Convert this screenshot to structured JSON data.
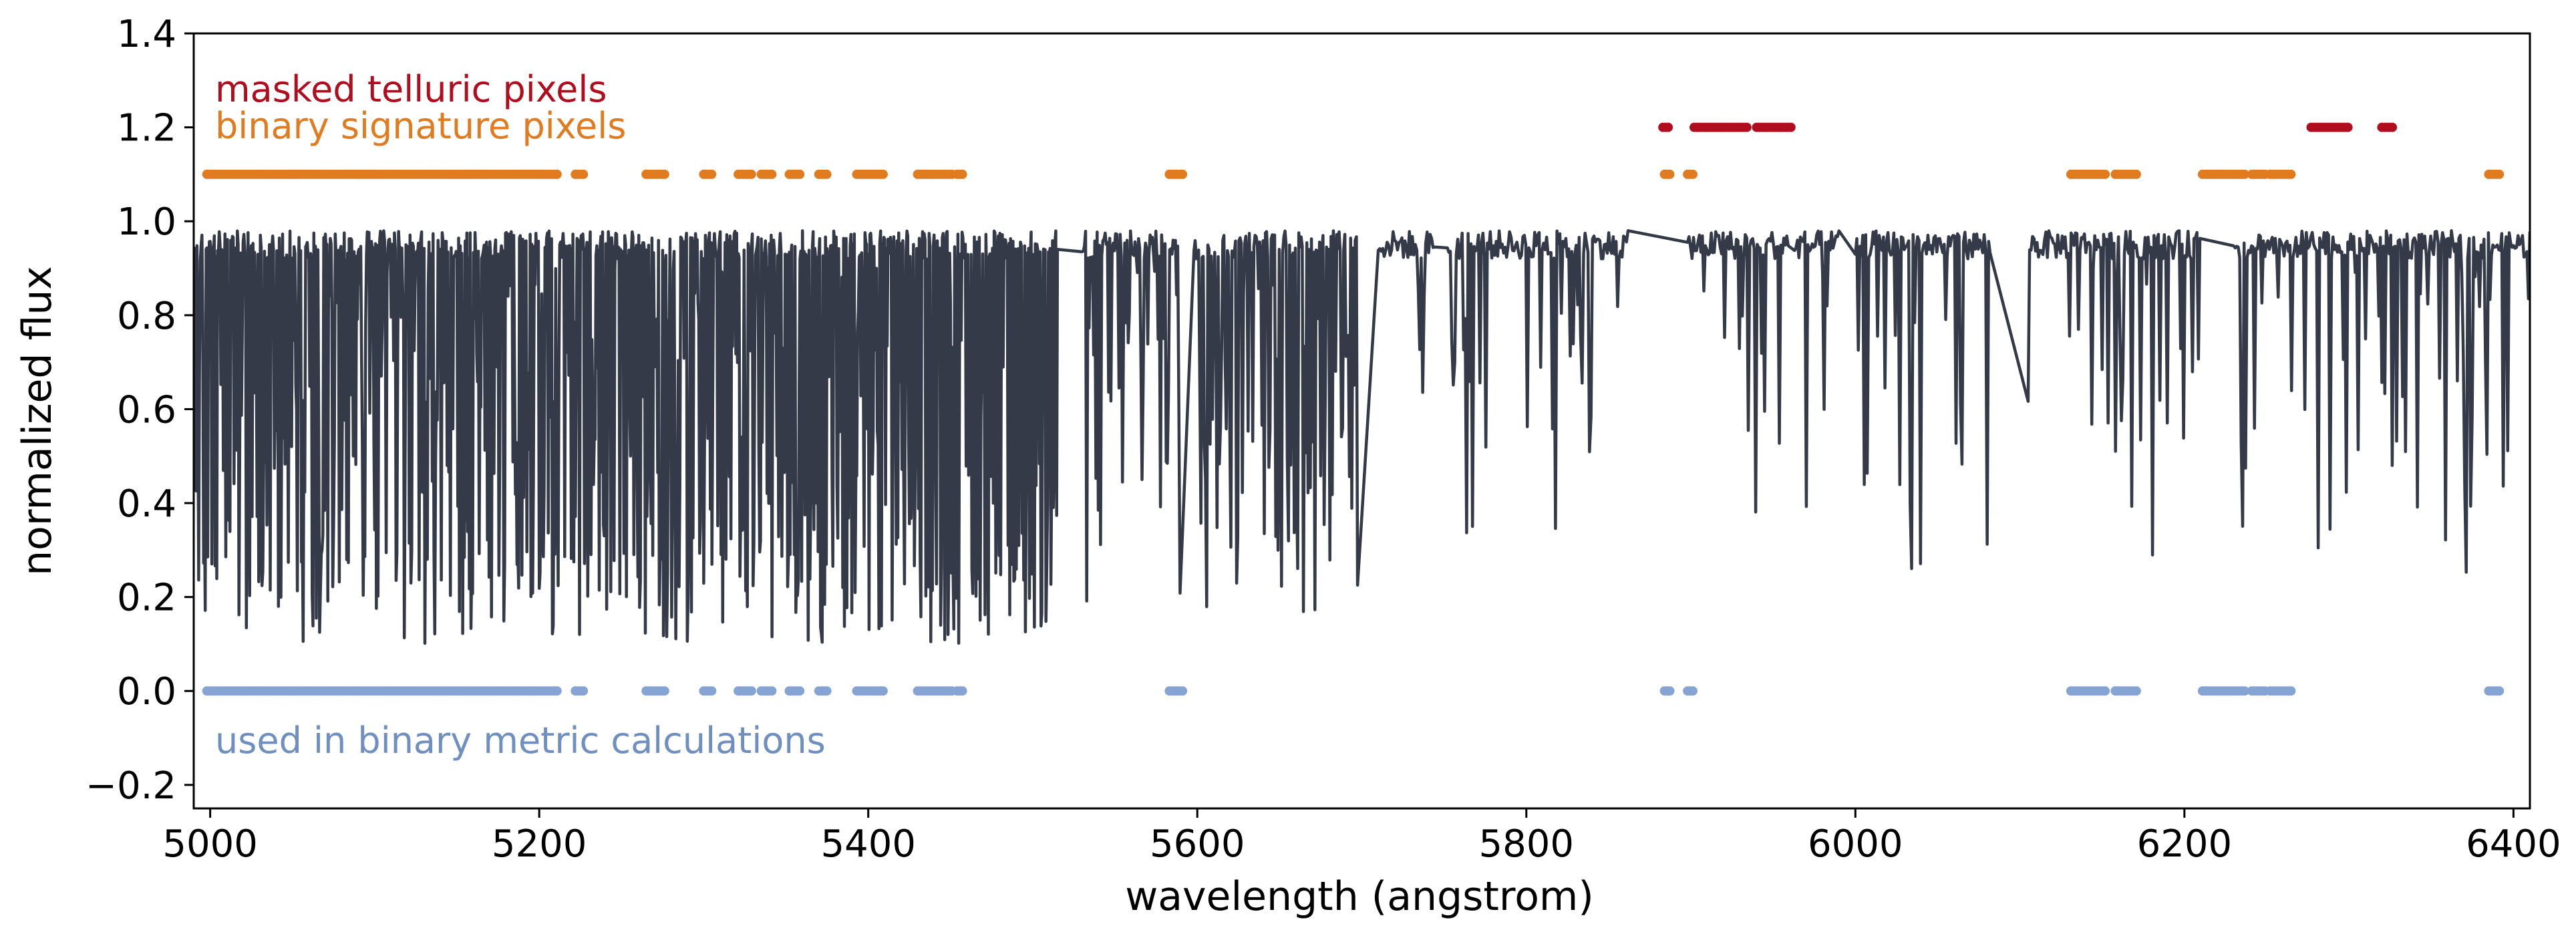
{
  "chart_data": {
    "type": "line",
    "xlabel": "wavelength (angstrom)",
    "ylabel": "normalized flux",
    "xlim": [
      4990,
      6410
    ],
    "ylim": [
      -0.25,
      1.4
    ],
    "x_ticks": [
      5000,
      5200,
      5400,
      5600,
      5800,
      6000,
      6200,
      6400
    ],
    "y_ticks": [
      -0.2,
      0.0,
      0.2,
      0.4,
      0.6,
      0.8,
      1.0,
      1.2,
      1.4
    ],
    "x_tick_labels": [
      "5000",
      "5200",
      "5400",
      "5600",
      "5800",
      "6000",
      "6200",
      "6400"
    ],
    "y_tick_labels": [
      "−0.2",
      "0.0",
      "0.2",
      "0.4",
      "0.6",
      "0.8",
      "1.0",
      "1.2",
      "1.4"
    ],
    "grid": false,
    "colors": {
      "spectrum": "#343a48",
      "masked_telluric": "#b00d1e",
      "binary_signature": "#e07b1f",
      "binary_metric": "#86a4d3"
    },
    "annotations": {
      "masked_telluric": "masked telluric pixels",
      "binary_signature": "binary signature pixels",
      "binary_metric": "used in binary metric calculations"
    },
    "series": [
      {
        "type": "line",
        "description_of_segments_in_x": [
          [
            4990,
            5515
          ],
          [
            5530,
            5590
          ],
          [
            5598,
            5698
          ],
          [
            5710,
            5745
          ],
          [
            5752,
            5862
          ],
          [
            5898,
            5960
          ],
          [
            5963,
            5990
          ],
          [
            6000,
            6082
          ],
          [
            6105,
            6210
          ],
          [
            6230,
            6410
          ]
        ],
        "line_baseline": 0.95,
        "deep_absorption_min": 0.08
      },
      {
        "type": "scatter",
        "y_value": 1.2,
        "x_ranges": [
          [
            5883,
            5887
          ],
          [
            5902,
            5935
          ],
          [
            5940,
            5962
          ],
          [
            6277,
            6301
          ],
          [
            6320,
            6328
          ]
        ]
      },
      {
        "type": "scatter",
        "y_value": 1.1,
        "x_ranges": [
          [
            4998,
            5212
          ],
          [
            5222,
            5228
          ],
          [
            5265,
            5277
          ],
          [
            5300,
            5306
          ],
          [
            5321,
            5330
          ],
          [
            5335,
            5342
          ],
          [
            5352,
            5359
          ],
          [
            5370,
            5375
          ],
          [
            5393,
            5410
          ],
          [
            5430,
            5452
          ],
          [
            5454,
            5458
          ],
          [
            5583,
            5592
          ],
          [
            5884,
            5888
          ],
          [
            5898,
            5902
          ],
          [
            6131,
            6152
          ],
          [
            6158,
            6172
          ],
          [
            6211,
            6237
          ],
          [
            6241,
            6250
          ],
          [
            6252,
            6266
          ],
          [
            6385,
            6393
          ]
        ]
      },
      {
        "type": "scatter",
        "y_value": 0.0,
        "x_ranges": [
          [
            4998,
            5212
          ],
          [
            5222,
            5228
          ],
          [
            5265,
            5277
          ],
          [
            5300,
            5306
          ],
          [
            5321,
            5330
          ],
          [
            5335,
            5342
          ],
          [
            5352,
            5359
          ],
          [
            5370,
            5375
          ],
          [
            5393,
            5410
          ],
          [
            5430,
            5452
          ],
          [
            5454,
            5458
          ],
          [
            5583,
            5592
          ],
          [
            5884,
            5888
          ],
          [
            5898,
            5902
          ],
          [
            6131,
            6152
          ],
          [
            6158,
            6172
          ],
          [
            6211,
            6237
          ],
          [
            6241,
            6250
          ],
          [
            6252,
            6266
          ],
          [
            6385,
            6393
          ]
        ]
      }
    ]
  }
}
